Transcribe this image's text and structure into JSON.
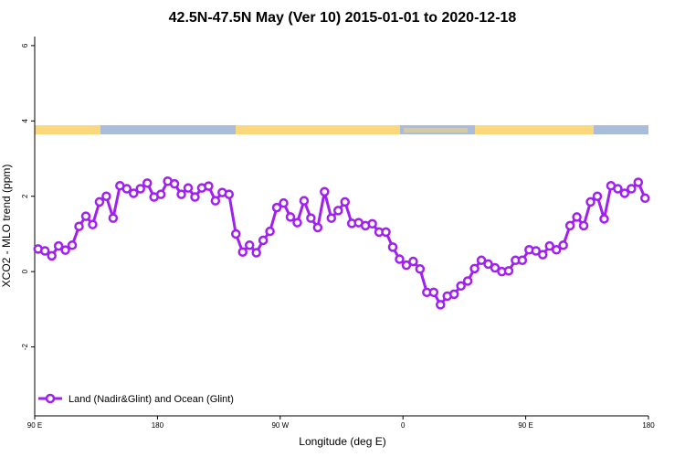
{
  "chart_data": {
    "type": "line",
    "title": "42.5N-47.5N May (Ver 10)   2015-01-01 to 2020-12-18",
    "xlabel": "Longitude (deg E)",
    "ylabel": "XCO2 - MLO trend (ppm)",
    "x": [
      92.5,
      97.5,
      102.5,
      107.5,
      112.5,
      117.5,
      122.5,
      127.5,
      132.5,
      137.5,
      142.5,
      147.5,
      152.5,
      157.5,
      162.5,
      167.5,
      172.5,
      177.5,
      182.5,
      187.5,
      192.5,
      197.5,
      202.5,
      207.5,
      212.5,
      217.5,
      222.5,
      227.5,
      232.5,
      237.5,
      242.5,
      247.5,
      252.5,
      257.5,
      262.5,
      267.5,
      272.5,
      277.5,
      282.5,
      287.5,
      292.5,
      297.5,
      302.5,
      307.5,
      312.5,
      317.5,
      322.5,
      327.5,
      332.5,
      337.5,
      342.5,
      347.5,
      352.5,
      357.5,
      362.5,
      367.5,
      372.5,
      377.5,
      382.5,
      387.5,
      392.5,
      397.5,
      402.5,
      407.5,
      412.5,
      417.5,
      422.5,
      427.5,
      432.5,
      437.5,
      442.5,
      447.5,
      452.5,
      457.5,
      462.5,
      467.5,
      472.5,
      477.5,
      482.5,
      487.5,
      492.5,
      497.5,
      502.5,
      507.5,
      512.5,
      517.5,
      522.5,
      527.5,
      532.5,
      537.5
    ],
    "series": [
      {
        "name": "Land (Nadir&Glint) and Ocean (Glint)",
        "color": "#a020f0",
        "values": [
          0.6,
          0.55,
          0.42,
          0.68,
          0.57,
          0.7,
          1.2,
          1.47,
          1.25,
          1.85,
          2.0,
          1.42,
          2.28,
          2.2,
          2.08,
          2.2,
          2.35,
          1.98,
          2.05,
          2.4,
          2.33,
          2.05,
          2.22,
          1.98,
          2.22,
          2.27,
          1.88,
          2.1,
          2.05,
          1.0,
          0.52,
          0.7,
          0.5,
          0.83,
          1.07,
          1.7,
          1.82,
          1.45,
          1.3,
          1.88,
          1.42,
          1.17,
          2.12,
          1.42,
          1.62,
          1.85,
          1.28,
          1.3,
          1.22,
          1.27,
          1.05,
          1.05,
          0.65,
          0.33,
          0.17,
          0.27,
          0.07,
          -0.55,
          -0.55,
          -0.88,
          -0.65,
          -0.6,
          -0.38,
          -0.25,
          0.08,
          0.3,
          0.2,
          0.1,
          0.0,
          0.02,
          0.3,
          0.3,
          0.58,
          0.55,
          0.45,
          0.68,
          0.58,
          0.7,
          1.22,
          1.45,
          1.22,
          1.85,
          2.0,
          1.4,
          2.28,
          2.2,
          2.08,
          2.2,
          2.37,
          1.95
        ]
      }
    ],
    "xlim": [
      90,
      540
    ],
    "xticks": [
      {
        "value": 90,
        "label": "90 E"
      },
      {
        "value": 180,
        "label": "180"
      },
      {
        "value": 270,
        "label": "90 W"
      },
      {
        "value": 360,
        "label": "0"
      },
      {
        "value": 450,
        "label": "90 E"
      },
      {
        "value": 540,
        "label": "180"
      }
    ],
    "ylim": [
      -3.83,
      6.24
    ],
    "yticks": [
      -2,
      0,
      2,
      4,
      6
    ],
    "legend": "lower left"
  }
}
